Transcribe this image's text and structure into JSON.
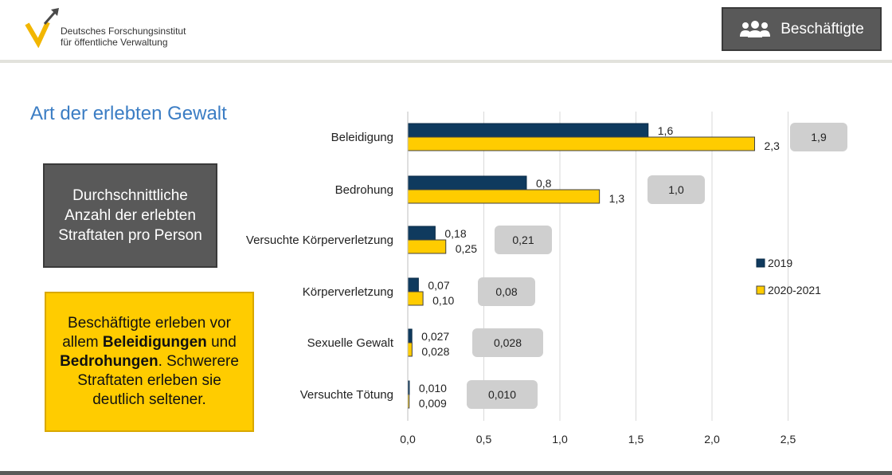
{
  "logo": {
    "line1": "Deutsches Forschungsinstitut",
    "line2": "für öffentliche Verwaltung"
  },
  "badge": {
    "label": "Beschäftigte",
    "icon": "users-icon"
  },
  "title": "Art der erlebten Gewalt",
  "info_box": "Durchschnittliche Anzahl der erlebten Straftaten pro Person",
  "callout": {
    "p1": "Beschäftigte erleben vor allem ",
    "b1": "Beleidigungen",
    "p2": " und ",
    "b2": "Bedrohungen",
    "p3": ". Schwerere Straftaten erleben sie deutlich seltener."
  },
  "colors": {
    "series_2019": "#0f3a5e",
    "series_2020": "#ffcc00",
    "title": "#3b7dc4",
    "avg_box": "#cfcfcf"
  },
  "chart_data": {
    "type": "bar",
    "orientation": "horizontal",
    "categories": [
      "Beleidigung",
      "Bedrohung",
      "Versuchte Körperverletzung",
      "Körperverletzung",
      "Sexuelle Gewalt",
      "Versuchte Tötung"
    ],
    "series": [
      {
        "name": "2019",
        "values": [
          1.58,
          0.78,
          0.18,
          0.07,
          0.027,
          0.01
        ],
        "labels": [
          "1,6",
          "0,8",
          "0,18",
          "0,07",
          "0,027",
          "0,010"
        ]
      },
      {
        "name": "2020-2021",
        "values": [
          2.28,
          1.26,
          0.25,
          0.1,
          0.028,
          0.009
        ],
        "labels": [
          "2,3",
          "1,3",
          "0,25",
          "0,10",
          "0,028",
          "0,009"
        ]
      }
    ],
    "averages": {
      "labels": [
        "1,9",
        "1,0",
        "0,21",
        "0,08",
        "0,028",
        "0,010"
      ]
    },
    "xlim": [
      0,
      2.5
    ],
    "xticks": [
      "0,0",
      "0,5",
      "1,0",
      "1,5",
      "2,0",
      "2,5"
    ],
    "grid": true,
    "legend": "right"
  }
}
